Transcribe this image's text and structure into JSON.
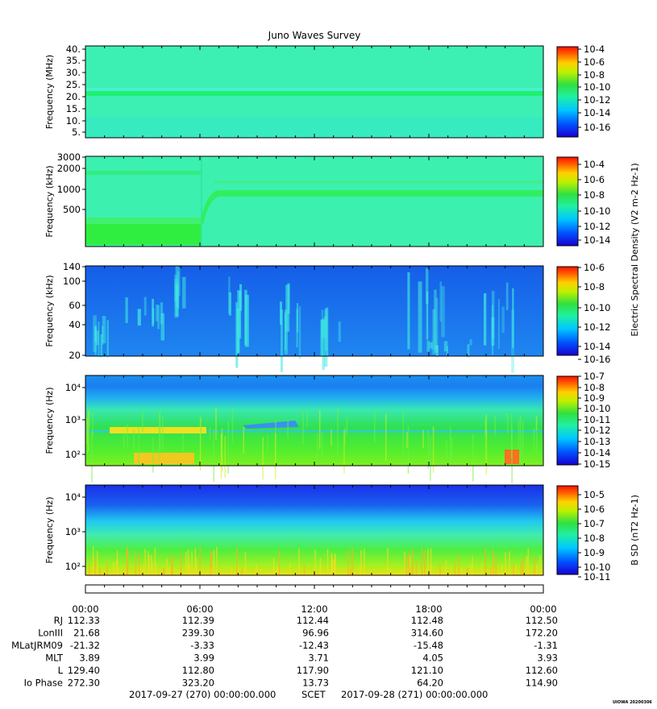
{
  "title": "Juno Waves Survey",
  "watermark": "UIOWA 20200306",
  "bottom_label": {
    "start": "2017-09-27 (270) 00:00:00.000",
    "middle": "SCET",
    "end": "2017-09-28 (271) 00:00:00.000"
  },
  "chart_data": [
    {
      "type": "heatmap",
      "ylabel": "Frequency (MHz)",
      "yticks": [
        "40.",
        "35.",
        "30.",
        "25.",
        "20.",
        "15.",
        "10.",
        "5."
      ],
      "colorbar_ticks": [
        "10-4",
        "10-6",
        "10-8",
        "10-10",
        "10-12",
        "10-14",
        "10-16"
      ],
      "colorbar_label": "",
      "colors": {
        "background": "#3cf0b3",
        "band": "#20f070"
      }
    },
    {
      "type": "heatmap",
      "ylabel": "Frequency (kHz)",
      "yticks": [
        "3000",
        "2000",
        "1000",
        "500"
      ],
      "colorbar_ticks": [
        "10-4",
        "10-6",
        "10-8",
        "10-10",
        "10-12",
        "10-14"
      ],
      "colorbar_label": "Electric Spectral Density (V2 m-2 Hz-1)",
      "colors": {
        "background": "#3cf0b0",
        "band": "#30ee60"
      }
    },
    {
      "type": "heatmap",
      "ylabel": "Frequency (kHz)",
      "yticks": [
        "140",
        "100",
        "60",
        "40",
        "20"
      ],
      "colorbar_ticks": [
        "10-6",
        "10-8",
        "10-10",
        "10-12",
        "10-14",
        "10-16"
      ],
      "colorbar_label": "",
      "colors": {
        "background": "#1a6cf0",
        "feature": "#40e8e0"
      }
    },
    {
      "type": "heatmap",
      "ylabel": "Frequency (Hz)",
      "yticks": [
        "10⁴",
        "10³",
        "10²"
      ],
      "colorbar_ticks": [
        "10-7",
        "10-8",
        "10-9",
        "10-10",
        "10-11",
        "10-12",
        "10-13",
        "10-14",
        "10-15"
      ],
      "colorbar_label": "",
      "colors": {
        "top": "#1a7cf0",
        "middle": "#30e060",
        "bottom": "#80f020"
      }
    },
    {
      "type": "heatmap",
      "ylabel": "Frequency (Hz)",
      "yticks": [
        "10⁴",
        "10³",
        "10²"
      ],
      "colorbar_ticks": [
        "10-5",
        "10-6",
        "10-7",
        "10-8",
        "10-9",
        "10-10",
        "10-11"
      ],
      "colorbar_label": "B SD (nT2 Hz-1)",
      "colors": {
        "top": "#1a3cf0",
        "middle": "#30e0d0",
        "bottom": "#a0f020"
      }
    }
  ],
  "ephemeris": {
    "times": [
      "00:00",
      "06:00",
      "12:00",
      "18:00",
      "00:00"
    ],
    "rows": [
      {
        "label": "RJ",
        "values": [
          "112.33",
          "112.39",
          "112.44",
          "112.48",
          "112.50"
        ]
      },
      {
        "label": "LonIII",
        "values": [
          "21.68",
          "239.30",
          "96.96",
          "314.60",
          "172.20"
        ]
      },
      {
        "label": "MLatJRM09",
        "values": [
          "-21.32",
          "-3.33",
          "-12.43",
          "-15.48",
          "-1.31"
        ]
      },
      {
        "label": "MLT",
        "values": [
          "3.89",
          "3.99",
          "3.71",
          "4.05",
          "3.93"
        ]
      },
      {
        "label": "L",
        "values": [
          "129.40",
          "112.80",
          "117.90",
          "121.10",
          "112.60"
        ]
      },
      {
        "label": "Io Phase",
        "values": [
          "272.30",
          "323.20",
          "13.73",
          "64.20",
          "114.90"
        ]
      }
    ]
  }
}
